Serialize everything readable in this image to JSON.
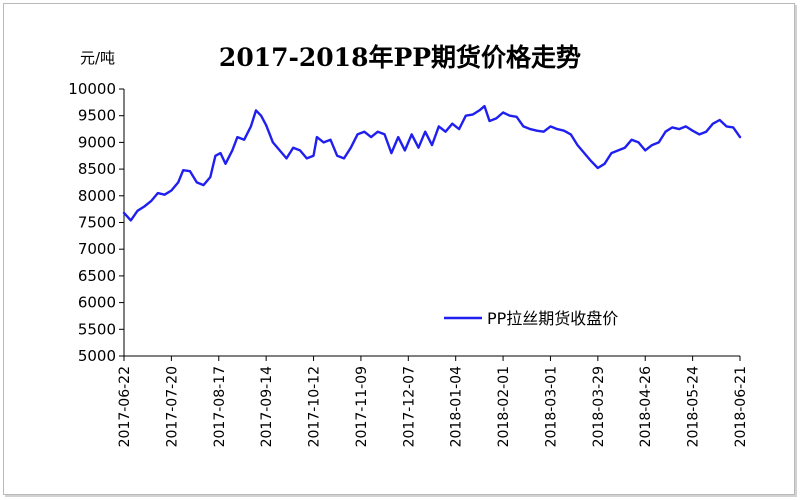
{
  "chart_data": {
    "type": "line",
    "title": "2017-2018年PP期货价格走势",
    "y_unit": "元/吨",
    "ylim": [
      5000,
      10000
    ],
    "y_ticks": [
      5000,
      5500,
      6000,
      6500,
      7000,
      7500,
      8000,
      8500,
      9000,
      9500,
      10000
    ],
    "x_tick_labels": [
      "2017-06-22",
      "2017-07-20",
      "2017-08-17",
      "2017-09-14",
      "2017-10-12",
      "2017-11-09",
      "2017-12-07",
      "2018-01-04",
      "2018-02-01",
      "2018-03-01",
      "2018-03-29",
      "2018-04-26",
      "2018-05-24",
      "2018-06-21"
    ],
    "grid": false,
    "legend_position": "right-middle",
    "series": [
      {
        "name": "PP拉丝期货收盘价",
        "color": "#1f1ff0",
        "points": [
          [
            "2017-06-22",
            7680
          ],
          [
            "2017-06-26",
            7540
          ],
          [
            "2017-06-30",
            7720
          ],
          [
            "2017-07-04",
            7800
          ],
          [
            "2017-07-08",
            7900
          ],
          [
            "2017-07-12",
            8050
          ],
          [
            "2017-07-16",
            8020
          ],
          [
            "2017-07-20",
            8100
          ],
          [
            "2017-07-24",
            8250
          ],
          [
            "2017-07-27",
            8480
          ],
          [
            "2017-07-31",
            8460
          ],
          [
            "2017-08-04",
            8250
          ],
          [
            "2017-08-08",
            8200
          ],
          [
            "2017-08-12",
            8350
          ],
          [
            "2017-08-15",
            8750
          ],
          [
            "2017-08-18",
            8800
          ],
          [
            "2017-08-21",
            8600
          ],
          [
            "2017-08-25",
            8850
          ],
          [
            "2017-08-28",
            9100
          ],
          [
            "2017-09-01",
            9050
          ],
          [
            "2017-09-05",
            9300
          ],
          [
            "2017-09-08",
            9600
          ],
          [
            "2017-09-11",
            9500
          ],
          [
            "2017-09-14",
            9320
          ],
          [
            "2017-09-18",
            9000
          ],
          [
            "2017-09-22",
            8850
          ],
          [
            "2017-09-26",
            8700
          ],
          [
            "2017-09-30",
            8900
          ],
          [
            "2017-10-04",
            8850
          ],
          [
            "2017-10-08",
            8700
          ],
          [
            "2017-10-12",
            8750
          ],
          [
            "2017-10-14",
            9100
          ],
          [
            "2017-10-18",
            9000
          ],
          [
            "2017-10-22",
            9050
          ],
          [
            "2017-10-26",
            8750
          ],
          [
            "2017-10-30",
            8700
          ],
          [
            "2017-11-03",
            8900
          ],
          [
            "2017-11-07",
            9150
          ],
          [
            "2017-11-11",
            9200
          ],
          [
            "2017-11-15",
            9100
          ],
          [
            "2017-11-19",
            9200
          ],
          [
            "2017-11-23",
            9150
          ],
          [
            "2017-11-27",
            8800
          ],
          [
            "2017-12-01",
            9100
          ],
          [
            "2017-12-05",
            8850
          ],
          [
            "2017-12-09",
            9150
          ],
          [
            "2017-12-13",
            8900
          ],
          [
            "2017-12-17",
            9200
          ],
          [
            "2017-12-21",
            8950
          ],
          [
            "2017-12-25",
            9300
          ],
          [
            "2017-12-29",
            9200
          ],
          [
            "2018-01-02",
            9350
          ],
          [
            "2018-01-06",
            9250
          ],
          [
            "2018-01-10",
            9500
          ],
          [
            "2018-01-14",
            9520
          ],
          [
            "2018-01-18",
            9600
          ],
          [
            "2018-01-21",
            9680
          ],
          [
            "2018-01-24",
            9400
          ],
          [
            "2018-01-28",
            9450
          ],
          [
            "2018-02-01",
            9560
          ],
          [
            "2018-02-05",
            9500
          ],
          [
            "2018-02-09",
            9480
          ],
          [
            "2018-02-13",
            9300
          ],
          [
            "2018-02-17",
            9250
          ],
          [
            "2018-02-21",
            9220
          ],
          [
            "2018-02-25",
            9200
          ],
          [
            "2018-03-01",
            9300
          ],
          [
            "2018-03-05",
            9250
          ],
          [
            "2018-03-09",
            9220
          ],
          [
            "2018-03-13",
            9150
          ],
          [
            "2018-03-17",
            8950
          ],
          [
            "2018-03-21",
            8800
          ],
          [
            "2018-03-25",
            8650
          ],
          [
            "2018-03-29",
            8520
          ],
          [
            "2018-04-02",
            8600
          ],
          [
            "2018-04-06",
            8800
          ],
          [
            "2018-04-10",
            8850
          ],
          [
            "2018-04-14",
            8900
          ],
          [
            "2018-04-18",
            9050
          ],
          [
            "2018-04-22",
            9000
          ],
          [
            "2018-04-26",
            8850
          ],
          [
            "2018-04-30",
            8950
          ],
          [
            "2018-05-04",
            9000
          ],
          [
            "2018-05-08",
            9200
          ],
          [
            "2018-05-12",
            9280
          ],
          [
            "2018-05-16",
            9250
          ],
          [
            "2018-05-20",
            9300
          ],
          [
            "2018-05-24",
            9220
          ],
          [
            "2018-05-28",
            9150
          ],
          [
            "2018-06-01",
            9200
          ],
          [
            "2018-06-05",
            9350
          ],
          [
            "2018-06-09",
            9420
          ],
          [
            "2018-06-13",
            9300
          ],
          [
            "2018-06-17",
            9280
          ],
          [
            "2018-06-21",
            9100
          ]
        ]
      }
    ]
  }
}
